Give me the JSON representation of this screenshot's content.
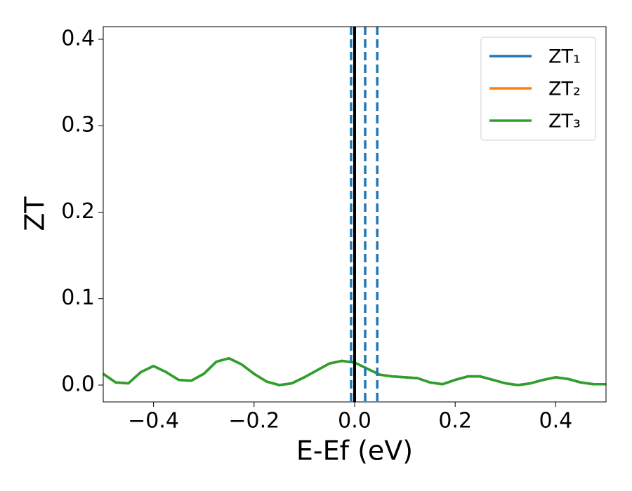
{
  "chart_data": {
    "type": "line",
    "xlabel": "E-Ef (eV)",
    "ylabel": "ZT",
    "x": [
      -0.5,
      -0.475,
      -0.45,
      -0.425,
      -0.4,
      -0.375,
      -0.35,
      -0.325,
      -0.3,
      -0.275,
      -0.25,
      -0.225,
      -0.2,
      -0.175,
      -0.15,
      -0.125,
      -0.1,
      -0.075,
      -0.05,
      -0.025,
      0,
      0.025,
      0.05,
      0.075,
      0.1,
      0.125,
      0.15,
      0.175,
      0.2,
      0.225,
      0.25,
      0.275,
      0.3,
      0.325,
      0.35,
      0.375,
      0.4,
      0.425,
      0.45,
      0.475,
      0.5
    ],
    "series": [
      {
        "name": "ZT₁",
        "color": "#1f77b4",
        "values": [
          0.013,
          0.003,
          0.002,
          0.015,
          0.022,
          0.015,
          0.006,
          0.005,
          0.013,
          0.027,
          0.031,
          0.024,
          0.013,
          0.004,
          0.0,
          0.002,
          0.009,
          0.017,
          0.025,
          0.028,
          0.026,
          0.019,
          0.012,
          0.01,
          0.009,
          0.008,
          0.003,
          0.001,
          0.006,
          0.01,
          0.01,
          0.006,
          0.002,
          0.0,
          0.002,
          0.006,
          0.009,
          0.007,
          0.003,
          0.001,
          0.001
        ]
      },
      {
        "name": "ZT₂",
        "color": "#ff7f0e",
        "values": [
          0.013,
          0.003,
          0.002,
          0.015,
          0.022,
          0.015,
          0.006,
          0.005,
          0.013,
          0.027,
          0.031,
          0.024,
          0.013,
          0.004,
          0.0,
          0.002,
          0.009,
          0.017,
          0.025,
          0.028,
          0.026,
          0.019,
          0.012,
          0.01,
          0.009,
          0.008,
          0.003,
          0.001,
          0.006,
          0.01,
          0.01,
          0.006,
          0.002,
          0.0,
          0.002,
          0.006,
          0.009,
          0.007,
          0.003,
          0.001,
          0.001
        ]
      },
      {
        "name": "ZT₃",
        "color": "#2ca02c",
        "values": [
          0.013,
          0.003,
          0.002,
          0.015,
          0.022,
          0.015,
          0.006,
          0.005,
          0.013,
          0.027,
          0.031,
          0.024,
          0.013,
          0.004,
          0.0,
          0.002,
          0.009,
          0.017,
          0.025,
          0.028,
          0.026,
          0.019,
          0.012,
          0.01,
          0.009,
          0.008,
          0.003,
          0.001,
          0.006,
          0.01,
          0.01,
          0.006,
          0.002,
          0.0,
          0.002,
          0.006,
          0.009,
          0.007,
          0.003,
          0.001,
          0.001
        ]
      }
    ],
    "vlines": [
      {
        "x": -0.007,
        "color": "#1f77b4",
        "style": "dashed"
      },
      {
        "x": 0.021,
        "color": "#1f77b4",
        "style": "dashed"
      },
      {
        "x": 0.045,
        "color": "#1f77b4",
        "style": "dashed"
      },
      {
        "x": 0,
        "color": "#000000",
        "style": "solid"
      }
    ],
    "xlim": [
      -0.5,
      0.5
    ],
    "ylim": [
      -0.0195,
      0.4146
    ],
    "xticks": [
      {
        "value": -0.4,
        "label": "−0.4"
      },
      {
        "value": -0.2,
        "label": "−0.2"
      },
      {
        "value": 0,
        "label": "0.0"
      },
      {
        "value": 0.2,
        "label": "0.2"
      },
      {
        "value": 0.4,
        "label": "0.4"
      }
    ],
    "yticks": [
      {
        "value": 0,
        "label": "0.0"
      },
      {
        "value": 0.1,
        "label": "0.1"
      },
      {
        "value": 0.2,
        "label": "0.2"
      },
      {
        "value": 0.3,
        "label": "0.3"
      },
      {
        "value": 0.4,
        "label": "0.4"
      }
    ],
    "legend": "upper right",
    "grid": false
  }
}
